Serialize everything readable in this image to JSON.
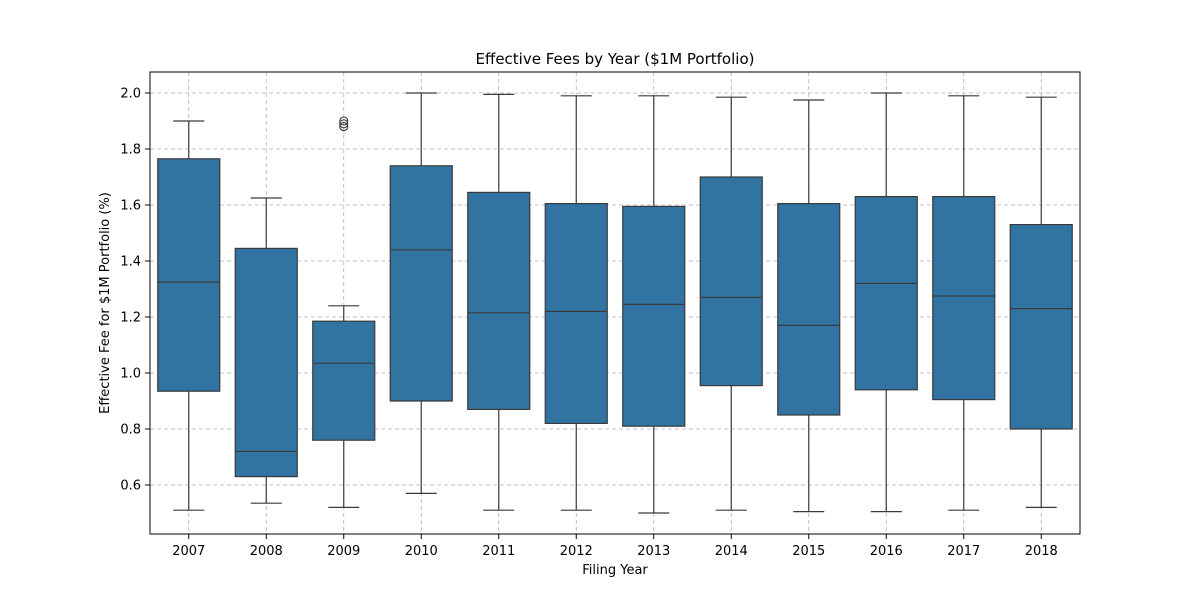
{
  "chart_data": {
    "type": "box",
    "title": "Effective Fees by Year ($1M Portfolio)",
    "xlabel": "Filing Year",
    "ylabel": "Effective Fee for $1M Portfolio (%)",
    "ylim": [
      0.425,
      2.075
    ],
    "yticks": [
      0.6,
      0.8,
      1.0,
      1.2,
      1.4,
      1.6,
      1.8,
      2.0
    ],
    "ytick_labels": [
      "0.6",
      "0.8",
      "1.0",
      "1.2",
      "1.4",
      "1.6",
      "1.8",
      "2.0"
    ],
    "grid": true,
    "box_color": "#3274a1",
    "categories": [
      "2007",
      "2008",
      "2009",
      "2010",
      "2011",
      "2012",
      "2013",
      "2014",
      "2015",
      "2016",
      "2017",
      "2018"
    ],
    "boxes": [
      {
        "whisker_low": 0.51,
        "q1": 0.935,
        "median": 1.325,
        "q3": 1.765,
        "whisker_high": 1.9,
        "fliers": []
      },
      {
        "whisker_low": 0.535,
        "q1": 0.63,
        "median": 0.72,
        "q3": 1.445,
        "whisker_high": 1.625,
        "fliers": []
      },
      {
        "whisker_low": 0.52,
        "q1": 0.76,
        "median": 1.035,
        "q3": 1.185,
        "whisker_high": 1.24,
        "fliers": [
          1.88,
          1.89,
          1.9
        ]
      },
      {
        "whisker_low": 0.57,
        "q1": 0.9,
        "median": 1.44,
        "q3": 1.74,
        "whisker_high": 2.0,
        "fliers": []
      },
      {
        "whisker_low": 0.51,
        "q1": 0.87,
        "median": 1.215,
        "q3": 1.645,
        "whisker_high": 1.995,
        "fliers": []
      },
      {
        "whisker_low": 0.51,
        "q1": 0.82,
        "median": 1.22,
        "q3": 1.605,
        "whisker_high": 1.99,
        "fliers": []
      },
      {
        "whisker_low": 0.5,
        "q1": 0.81,
        "median": 1.245,
        "q3": 1.595,
        "whisker_high": 1.99,
        "fliers": []
      },
      {
        "whisker_low": 0.51,
        "q1": 0.955,
        "median": 1.27,
        "q3": 1.7,
        "whisker_high": 1.985,
        "fliers": []
      },
      {
        "whisker_low": 0.505,
        "q1": 0.85,
        "median": 1.17,
        "q3": 1.605,
        "whisker_high": 1.975,
        "fliers": []
      },
      {
        "whisker_low": 0.505,
        "q1": 0.94,
        "median": 1.32,
        "q3": 1.63,
        "whisker_high": 2.0,
        "fliers": []
      },
      {
        "whisker_low": 0.51,
        "q1": 0.905,
        "median": 1.275,
        "q3": 1.63,
        "whisker_high": 1.99,
        "fliers": []
      },
      {
        "whisker_low": 0.52,
        "q1": 0.8,
        "median": 1.23,
        "q3": 1.53,
        "whisker_high": 1.985,
        "fliers": []
      }
    ]
  }
}
